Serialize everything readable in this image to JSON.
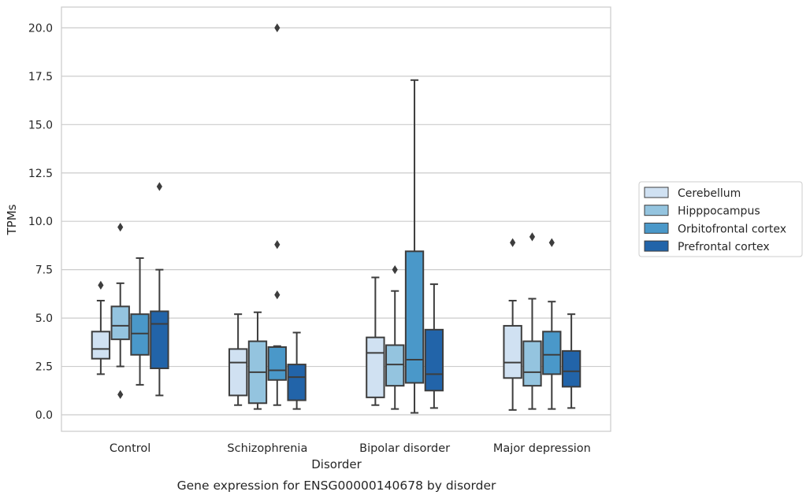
{
  "chart_data": {
    "type": "box",
    "title": "Gene expression for ENSG00000140678 by disorder",
    "xlabel": "Disorder",
    "ylabel": "TPMs",
    "ylim": [
      -0.8,
      21.0
    ],
    "yticks": [
      "0.0",
      "2.5",
      "5.0",
      "7.5",
      "10.0",
      "12.5",
      "15.0",
      "17.5",
      "20.0"
    ],
    "categories": [
      "Control",
      "Schizophrenia",
      "Bipolar disorder",
      "Major depression"
    ],
    "grid": "horizontal",
    "legend_position": "right",
    "series": [
      {
        "name": "Cerebellum",
        "color": "#d0e1f2",
        "boxes": [
          {
            "whislo": 2.1,
            "q1": 2.9,
            "med": 3.4,
            "q3": 4.3,
            "whishi": 5.9,
            "fliers": [
              6.7
            ]
          },
          {
            "whislo": 0.5,
            "q1": 1.0,
            "med": 2.7,
            "q3": 3.4,
            "whishi": 5.2,
            "fliers": []
          },
          {
            "whislo": 0.5,
            "q1": 0.9,
            "med": 3.2,
            "q3": 4.0,
            "whishi": 7.1,
            "fliers": []
          },
          {
            "whislo": 0.25,
            "q1": 1.9,
            "med": 2.7,
            "q3": 4.6,
            "whishi": 5.9,
            "fliers": [
              8.9
            ]
          }
        ]
      },
      {
        "name": "Hipppocampus",
        "color": "#94c4df",
        "boxes": [
          {
            "whislo": 2.5,
            "q1": 3.9,
            "med": 4.6,
            "q3": 5.6,
            "whishi": 6.8,
            "fliers": [
              9.7,
              1.05
            ]
          },
          {
            "whislo": 0.3,
            "q1": 0.6,
            "med": 2.2,
            "q3": 3.8,
            "whishi": 5.3,
            "fliers": []
          },
          {
            "whislo": 0.3,
            "q1": 1.5,
            "med": 2.6,
            "q3": 3.6,
            "whishi": 6.4,
            "fliers": [
              7.5
            ]
          },
          {
            "whislo": 0.3,
            "q1": 1.5,
            "med": 2.2,
            "q3": 3.8,
            "whishi": 6.0,
            "fliers": [
              9.2
            ]
          }
        ]
      },
      {
        "name": "Orbitofrontal cortex",
        "color": "#4a98c9",
        "boxes": [
          {
            "whislo": 1.55,
            "q1": 3.1,
            "med": 4.2,
            "q3": 5.2,
            "whishi": 8.1,
            "fliers": []
          },
          {
            "whislo": 0.5,
            "q1": 1.8,
            "med": 2.3,
            "q3": 3.5,
            "whishi": 3.55,
            "fliers": [
              8.8,
              6.2,
              20.0
            ]
          },
          {
            "whislo": 0.1,
            "q1": 1.65,
            "med": 2.85,
            "q3": 8.45,
            "whishi": 17.3,
            "fliers": []
          },
          {
            "whislo": 0.3,
            "q1": 2.1,
            "med": 3.1,
            "q3": 4.3,
            "whishi": 5.85,
            "fliers": [
              8.9
            ]
          }
        ]
      },
      {
        "name": "Prefrontal cortex",
        "color": "#2264a9",
        "boxes": [
          {
            "whislo": 1.0,
            "q1": 2.4,
            "med": 4.7,
            "q3": 5.35,
            "whishi": 7.5,
            "fliers": [
              11.8
            ]
          },
          {
            "whislo": 0.3,
            "q1": 0.75,
            "med": 1.95,
            "q3": 2.6,
            "whishi": 4.25,
            "fliers": []
          },
          {
            "whislo": 0.35,
            "q1": 1.25,
            "med": 2.1,
            "q3": 4.4,
            "whishi": 6.75,
            "fliers": []
          },
          {
            "whislo": 0.35,
            "q1": 1.45,
            "med": 2.25,
            "q3": 3.3,
            "whishi": 5.2,
            "fliers": []
          }
        ]
      }
    ]
  }
}
